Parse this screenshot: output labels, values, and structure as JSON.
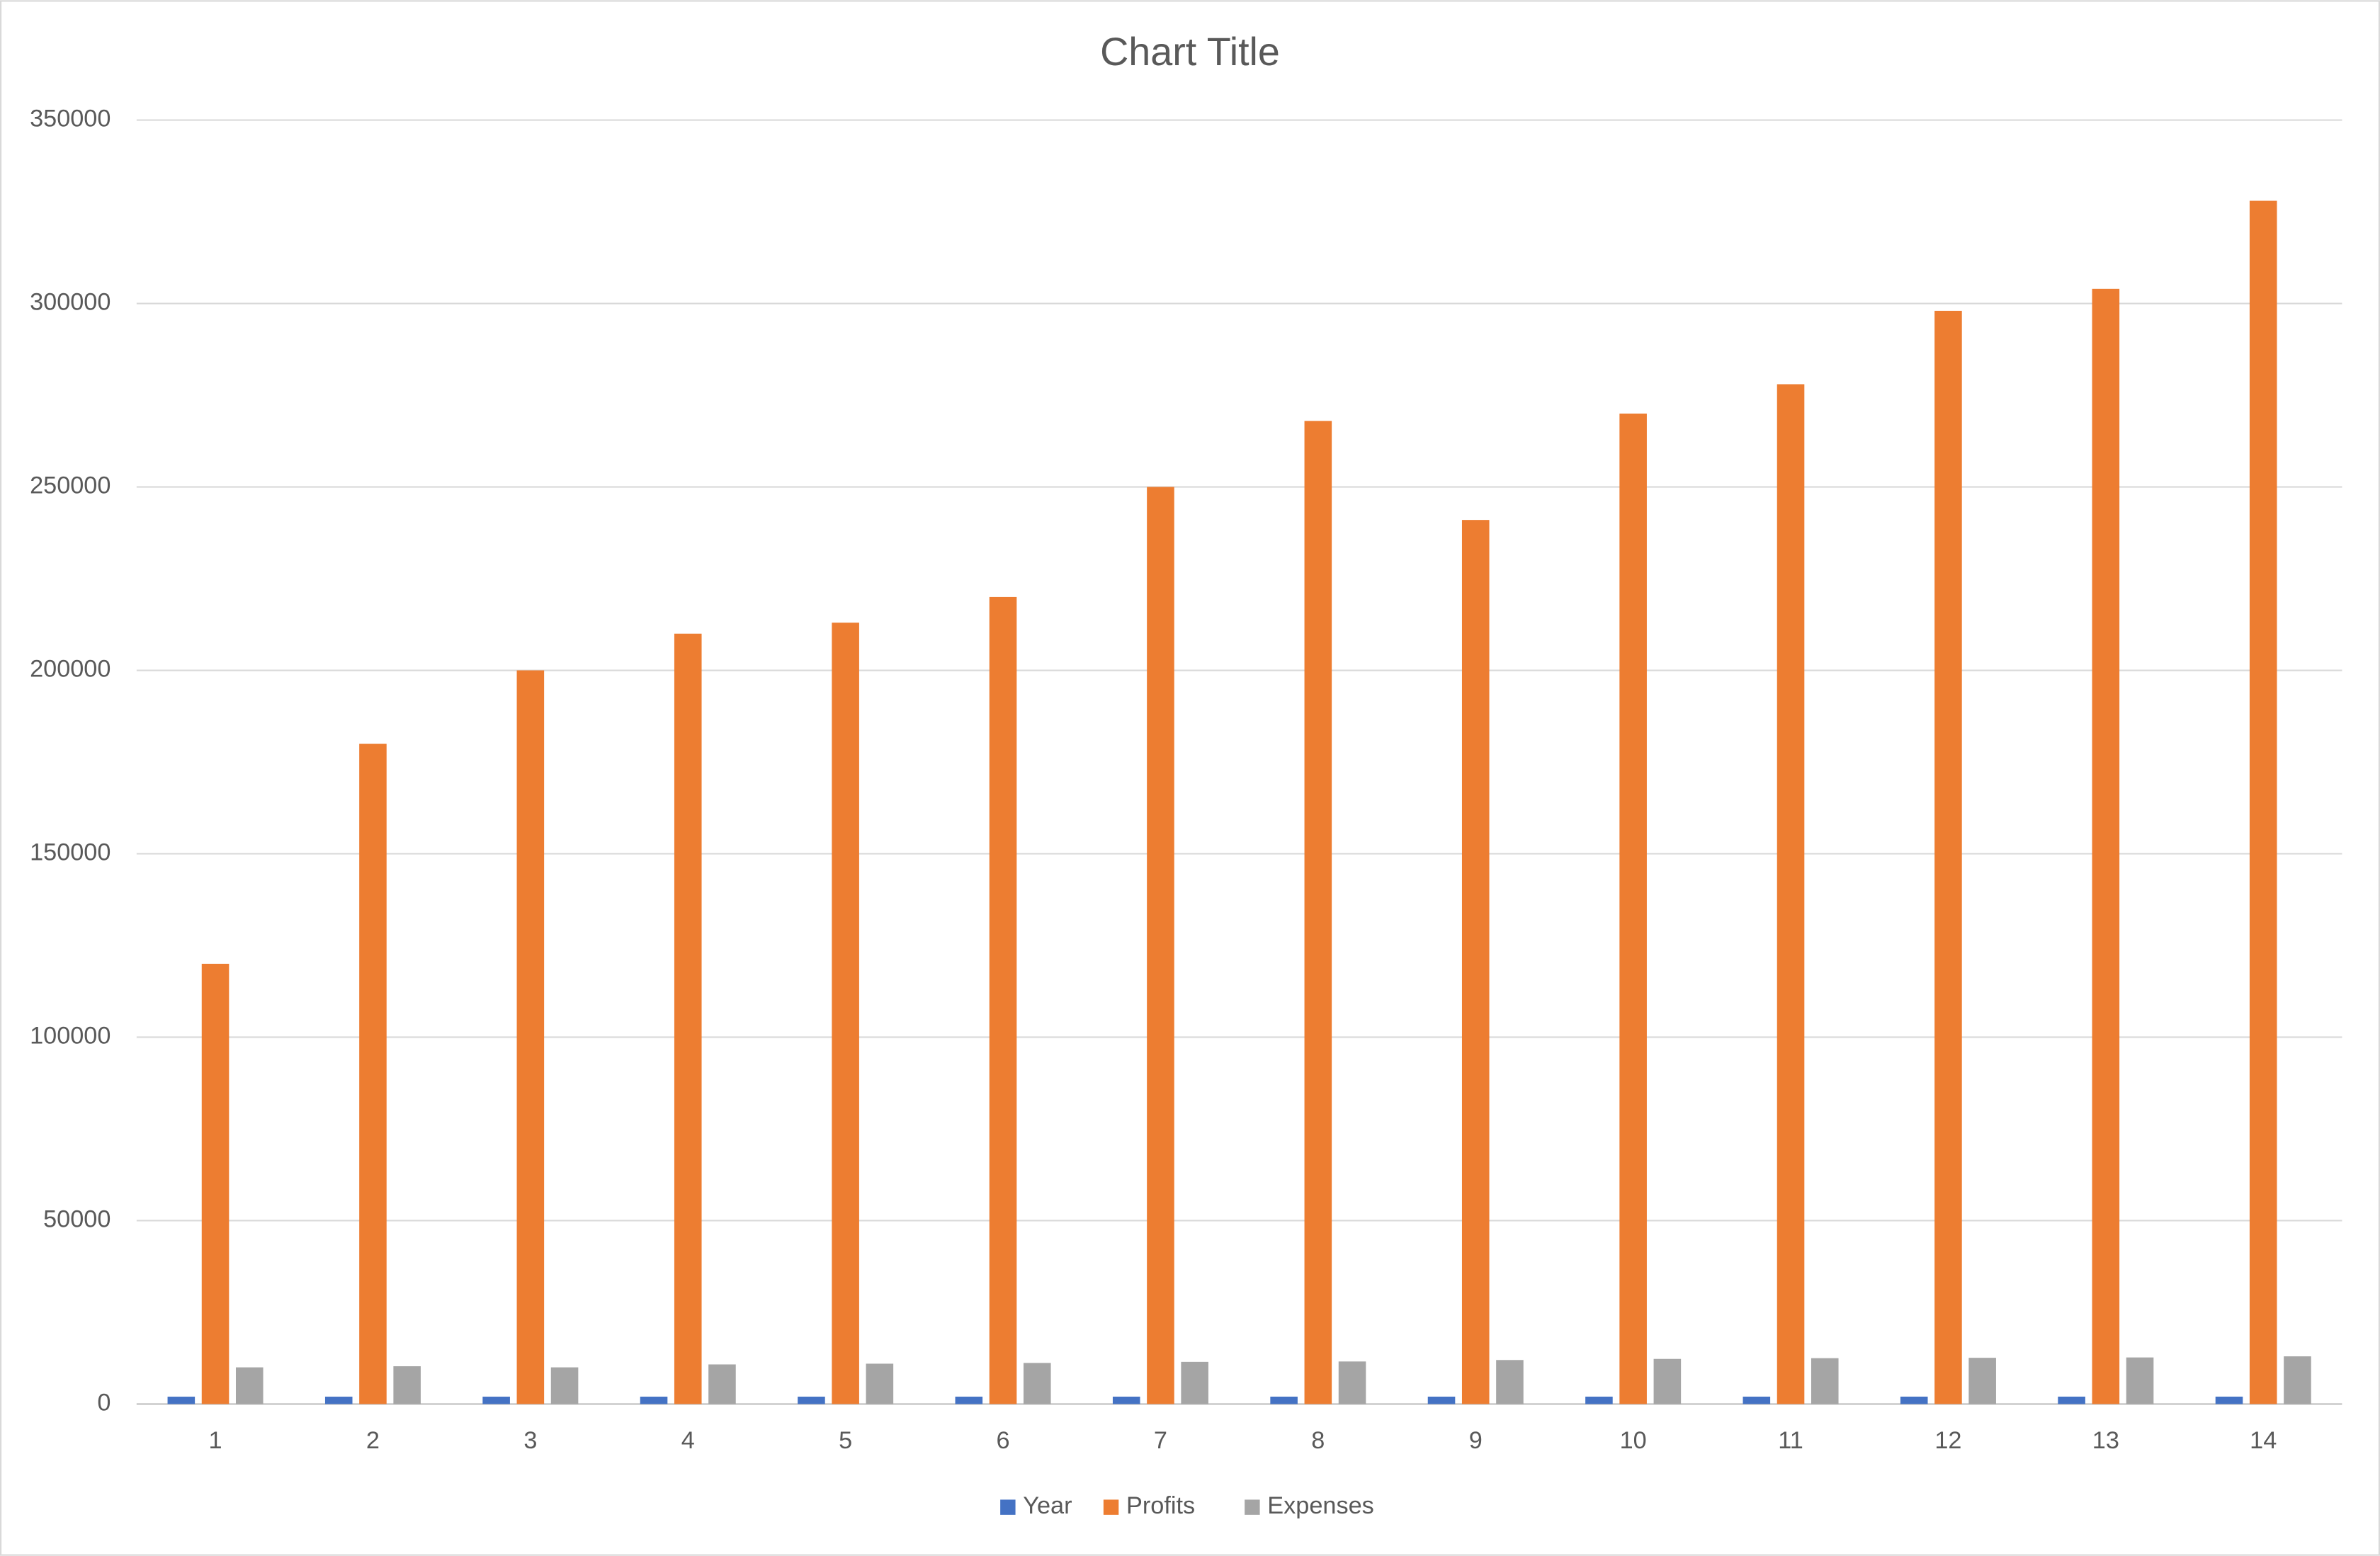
{
  "chart_data": {
    "type": "bar",
    "title": "Chart Title",
    "categories": [
      "1",
      "2",
      "3",
      "4",
      "5",
      "6",
      "7",
      "8",
      "9",
      "10",
      "11",
      "12",
      "13",
      "14"
    ],
    "series": [
      {
        "name": "Year",
        "color": "#4472c4",
        "values": [
          2005,
          2006,
          2007,
          2008,
          2009,
          2010,
          2011,
          2012,
          2013,
          2014,
          2015,
          2016,
          2017,
          2018
        ]
      },
      {
        "name": "Profits",
        "color": "#ed7d31",
        "values": [
          120000,
          180000,
          200000,
          210000,
          213000,
          220000,
          250000,
          268000,
          241000,
          270000,
          278000,
          298000,
          304000,
          328000
        ]
      },
      {
        "name": "Expenses",
        "color": "#a5a5a5",
        "values": [
          10000,
          10300,
          10000,
          10800,
          11000,
          11200,
          11500,
          11600,
          12000,
          12300,
          12500,
          12600,
          12700,
          13000
        ]
      }
    ],
    "ylim": [
      0,
      350000
    ],
    "yticks": [
      0,
      50000,
      100000,
      150000,
      200000,
      250000,
      300000,
      350000
    ],
    "grid": true,
    "legend": "bottom"
  }
}
